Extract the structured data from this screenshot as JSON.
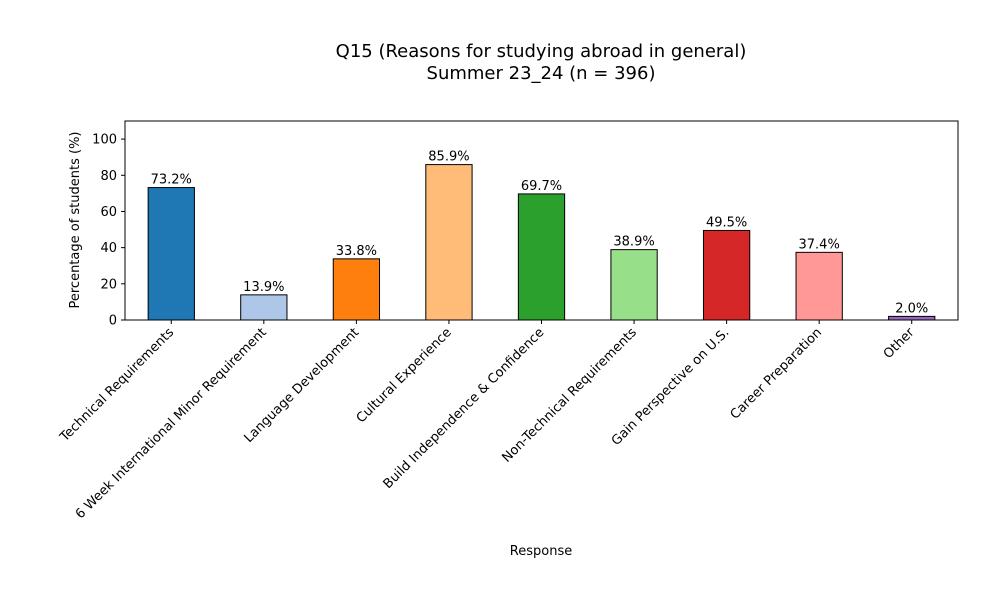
{
  "chart_data": {
    "type": "bar",
    "title_line1": "Q15 (Reasons for studying abroad in general)",
    "title_line2": "Summer 23_24 (n = 396)",
    "xlabel": "Response",
    "ylabel": "Percentage of students (%)",
    "ylim": [
      0,
      110
    ],
    "yticks": [
      0,
      20,
      40,
      60,
      80,
      100
    ],
    "grid": false,
    "categories": [
      "Technical Requirements",
      "6 Week International Minor Requirement",
      "Language Development",
      "Cultural Experience",
      "Build Independence & Confidence",
      "Non-Technical Requirements",
      "Gain Perspective on U.S.",
      "Career Preparation",
      "Other"
    ],
    "values": [
      73.2,
      13.9,
      33.8,
      85.9,
      69.7,
      38.9,
      49.5,
      37.4,
      2.0
    ],
    "labels": [
      "73.2%",
      "13.9%",
      "33.8%",
      "85.9%",
      "69.7%",
      "38.9%",
      "49.5%",
      "37.4%",
      "2.0%"
    ],
    "colors": [
      "#1f77b4",
      "#aec7e8",
      "#ff7f0e",
      "#ffbb78",
      "#2ca02c",
      "#98df8a",
      "#d62728",
      "#ff9896",
      "#9467bd"
    ]
  }
}
